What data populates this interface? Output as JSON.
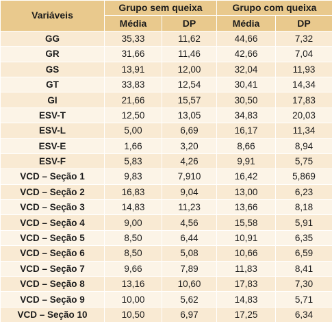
{
  "headers": {
    "variables": "Variáveis",
    "group_no_complaint": "Grupo sem queixa",
    "group_complaint": "Grupo com queixa",
    "mean": "Média",
    "sd": "DP"
  },
  "rows": [
    {
      "var": "GG",
      "m1": "35,33",
      "d1": "11,62",
      "m2": "44,66",
      "d2": "7,32"
    },
    {
      "var": "GR",
      "m1": "31,66",
      "d1": "11,46",
      "m2": "42,66",
      "d2": "7,04"
    },
    {
      "var": "GS",
      "m1": "13,91",
      "d1": "12,00",
      "m2": "32,04",
      "d2": "11,93"
    },
    {
      "var": "GT",
      "m1": "33,83",
      "d1": "12,54",
      "m2": "30,41",
      "d2": "14,34"
    },
    {
      "var": "GI",
      "m1": "21,66",
      "d1": "15,57",
      "m2": "30,50",
      "d2": "17,83"
    },
    {
      "var": "ESV-T",
      "m1": "12,50",
      "d1": "13,05",
      "m2": "34,83",
      "d2": "20,03"
    },
    {
      "var": "ESV-L",
      "m1": "5,00",
      "d1": "6,69",
      "m2": "16,17",
      "d2": "11,34"
    },
    {
      "var": "ESV-E",
      "m1": "1,66",
      "d1": "3,20",
      "m2": "8,66",
      "d2": "8,94"
    },
    {
      "var": "ESV-F",
      "m1": "5,83",
      "d1": "4,26",
      "m2": "9,91",
      "d2": "5,75"
    },
    {
      "var": "VCD – Seção 1",
      "m1": "9,83",
      "d1": "7,910",
      "m2": "16,42",
      "d2": "5,869"
    },
    {
      "var": "VCD – Seção 2",
      "m1": "16,83",
      "d1": "9,04",
      "m2": "13,00",
      "d2": "6,23"
    },
    {
      "var": "VCD – Seção 3",
      "m1": "14,83",
      "d1": "11,23",
      "m2": "13,66",
      "d2": "8,18"
    },
    {
      "var": "VCD – Seção 4",
      "m1": "9,00",
      "d1": "4,56",
      "m2": "15,58",
      "d2": "5,91"
    },
    {
      "var": "VCD – Seção 5",
      "m1": "8,50",
      "d1": "6,44",
      "m2": "10,91",
      "d2": "6,35"
    },
    {
      "var": "VCD – Seção 6",
      "m1": "8,50",
      "d1": "5,08",
      "m2": "10,66",
      "d2": "6,59"
    },
    {
      "var": "VCD – Seção 7",
      "m1": "9,66",
      "d1": "7,89",
      "m2": "11,83",
      "d2": "8,41"
    },
    {
      "var": "VCD – Seção 8",
      "m1": "13,16",
      "d1": "10,60",
      "m2": "17,83",
      "d2": "7,30"
    },
    {
      "var": "VCD – Seção 9",
      "m1": "10,00",
      "d1": "5,62",
      "m2": "14,83",
      "d2": "5,71"
    },
    {
      "var": "VCD – Seção 10",
      "m1": "10,50",
      "d1": "6,97",
      "m2": "17,25",
      "d2": "6,34"
    }
  ]
}
